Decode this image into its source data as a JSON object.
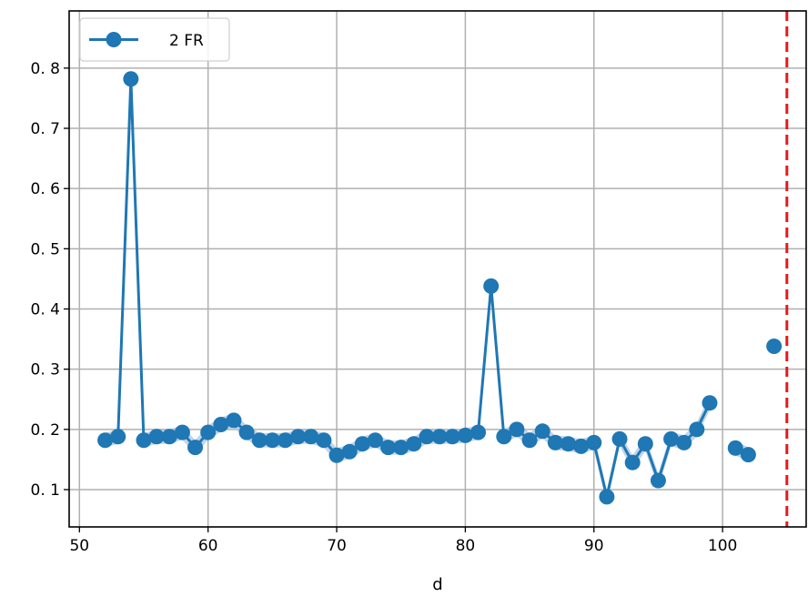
{
  "chart_data": {
    "type": "line",
    "title": "",
    "xlabel": "d",
    "ylabel": "",
    "xlim": [
      49.2,
      106.5
    ],
    "ylim": [
      0.038,
      0.895
    ],
    "xticks": [
      50,
      60,
      70,
      80,
      90,
      100
    ],
    "yticks": [
      0.1,
      0.2,
      0.3,
      0.4,
      0.5,
      0.6,
      0.7,
      0.8
    ],
    "xtick_labels": [
      "50",
      "60",
      "70",
      "80",
      "90",
      "100"
    ],
    "ytick_labels": [
      "0. 1",
      "0. 2",
      "0. 3",
      "0. 4",
      "0. 5",
      "0. 6",
      "0. 7",
      "0. 8"
    ],
    "grid": true,
    "legend_placement": "top-left",
    "vline": {
      "x": 105,
      "color": "#e41a1c",
      "style": "dashed"
    },
    "series": [
      {
        "name": "2 FR",
        "color": "#1f77b4",
        "band_color": "#a6c3e0",
        "points": [
          {
            "x": 52,
            "y": 0.182
          },
          {
            "x": 53,
            "y": 0.188
          },
          {
            "x": 54,
            "y": 0.782
          },
          {
            "x": 55,
            "y": 0.182
          },
          {
            "x": 56,
            "y": 0.188
          },
          {
            "x": 57,
            "y": 0.188
          },
          {
            "x": 58,
            "y": 0.195
          },
          {
            "x": 59,
            "y": 0.17
          },
          {
            "x": 60,
            "y": 0.195
          },
          {
            "x": 61,
            "y": 0.208
          },
          {
            "x": 62,
            "y": 0.215
          },
          {
            "x": 63,
            "y": 0.195
          },
          {
            "x": 64,
            "y": 0.182
          },
          {
            "x": 65,
            "y": 0.182
          },
          {
            "x": 66,
            "y": 0.182
          },
          {
            "x": 67,
            "y": 0.188
          },
          {
            "x": 68,
            "y": 0.188
          },
          {
            "x": 69,
            "y": 0.182
          },
          {
            "x": 70,
            "y": 0.157
          },
          {
            "x": 71,
            "y": 0.163
          },
          {
            "x": 72,
            "y": 0.176
          },
          {
            "x": 73,
            "y": 0.182
          },
          {
            "x": 74,
            "y": 0.17
          },
          {
            "x": 75,
            "y": 0.17
          },
          {
            "x": 76,
            "y": 0.176
          },
          {
            "x": 77,
            "y": 0.188
          },
          {
            "x": 78,
            "y": 0.188
          },
          {
            "x": 79,
            "y": 0.188
          },
          {
            "x": 80,
            "y": 0.19
          },
          {
            "x": 81,
            "y": 0.195
          },
          {
            "x": 82,
            "y": 0.438
          },
          {
            "x": 83,
            "y": 0.188
          },
          {
            "x": 84,
            "y": 0.2
          },
          {
            "x": 85,
            "y": 0.182
          },
          {
            "x": 86,
            "y": 0.197
          },
          {
            "x": 87,
            "y": 0.178
          },
          {
            "x": 88,
            "y": 0.176
          },
          {
            "x": 89,
            "y": 0.172
          },
          {
            "x": 90,
            "y": 0.178
          },
          {
            "x": 91,
            "y": 0.088
          },
          {
            "x": 92,
            "y": 0.184
          },
          {
            "x": 93,
            "y": 0.145
          },
          {
            "x": 94,
            "y": 0.176
          },
          {
            "x": 95,
            "y": 0.115
          },
          {
            "x": 96,
            "y": 0.184
          },
          {
            "x": 97,
            "y": 0.178
          },
          {
            "x": 98,
            "y": 0.2
          },
          {
            "x": 99,
            "y": 0.244
          },
          {
            "x": 101,
            "y": 0.169
          },
          {
            "x": 102,
            "y": 0.158
          },
          {
            "x": 104,
            "y": 0.338
          }
        ]
      }
    ]
  }
}
